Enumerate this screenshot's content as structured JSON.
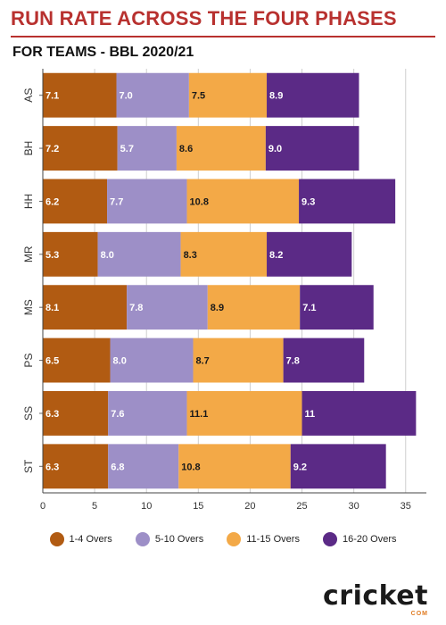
{
  "title": "RUN RATE ACROSS THE FOUR PHASES",
  "subtitle": "FOR TEAMS - BBL 2020/21",
  "brand": {
    "logo_text": "cricket",
    "logo_sub": "COM"
  },
  "colors": {
    "phase1": "#b15b12",
    "phase2": "#9d8fc7",
    "phase3": "#f3a947",
    "phase4": "#5b2a86",
    "title": "#b8312f"
  },
  "chart_data": {
    "type": "bar",
    "orientation": "horizontal",
    "stacked": true,
    "title": "RUN RATE ACROSS THE FOUR PHASES",
    "subtitle": "FOR TEAMS - BBL 2020/21",
    "categories": [
      "AS",
      "BH",
      "HH",
      "MR",
      "MS",
      "PS",
      "SS",
      "ST"
    ],
    "series": [
      {
        "name": "1-4 Overs",
        "values": [
          7.1,
          7.2,
          6.2,
          5.3,
          8.1,
          6.5,
          6.3,
          6.3
        ],
        "labels": [
          "7.1",
          "7.2",
          "6.2",
          "5.3",
          "8.1",
          "6.5",
          "6.3",
          "6.3"
        ]
      },
      {
        "name": "5-10 Overs",
        "values": [
          7.0,
          5.7,
          7.7,
          8.0,
          7.8,
          8.0,
          7.6,
          6.8
        ],
        "labels": [
          "7.0",
          "5.7",
          "7.7",
          "8.0",
          "7.8",
          "8.0",
          "7.6",
          "6.8"
        ]
      },
      {
        "name": "11-15 Overs",
        "values": [
          7.5,
          8.6,
          10.8,
          8.3,
          8.9,
          8.7,
          11.1,
          10.8
        ],
        "labels": [
          "7.5",
          "8.6",
          "10.8",
          "8.3",
          "8.9",
          "8.7",
          "11.1",
          "10.8"
        ]
      },
      {
        "name": "16-20 Overs",
        "values": [
          8.9,
          9.0,
          9.3,
          8.2,
          7.1,
          7.8,
          11,
          9.2
        ],
        "labels": [
          "8.9",
          "9.0",
          "9.3",
          "8.2",
          "7.1",
          "7.8",
          "11",
          "9.2"
        ]
      }
    ],
    "xticks": [
      "0",
      "5",
      "10",
      "15",
      "20",
      "25",
      "30",
      "35"
    ],
    "xlim": [
      0,
      37
    ],
    "grid": true,
    "legend_position": "bottom"
  }
}
